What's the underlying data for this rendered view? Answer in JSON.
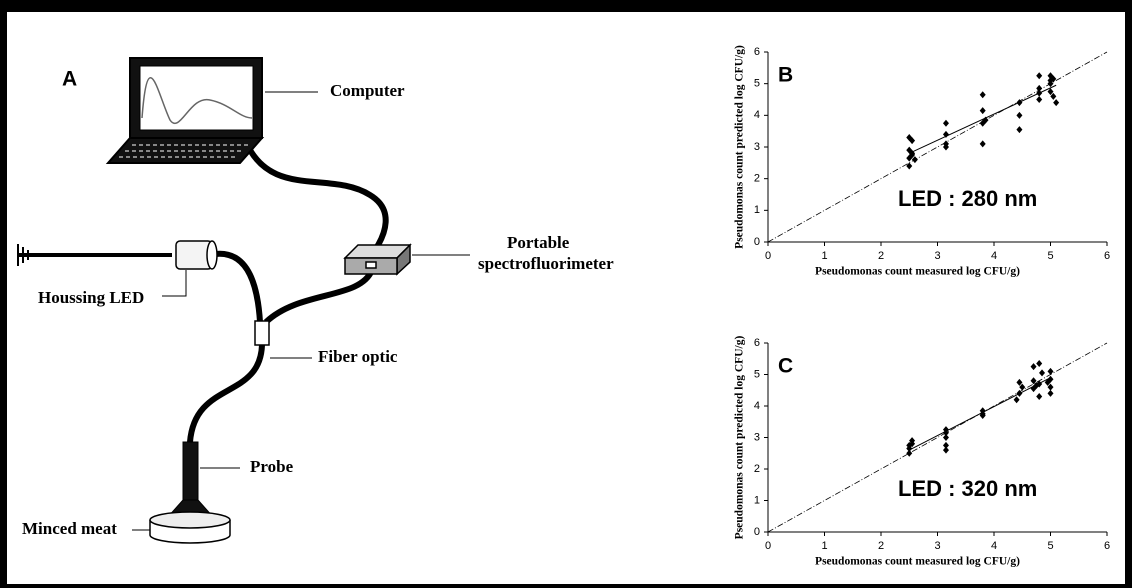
{
  "diagram": {
    "panel_label": "A",
    "labels": [
      "Computer",
      "Portable",
      "spectrofluorimeter",
      "Houssing LED",
      "Fiber optic",
      "Probe",
      "Minced meat"
    ]
  },
  "chart_data": [
    {
      "type": "scatter",
      "panel_label": "B",
      "annotation": "LED : 280 nm",
      "xlabel": "Pseudomonas count measured log CFU/g)",
      "ylabel": "Pseudomonas count predicted log CFU/g)",
      "x": [
        2.5,
        2.55,
        2.5,
        2.55,
        2.5,
        2.6,
        2.5,
        2.55,
        3.15,
        3.15,
        3.15,
        3.15,
        3.8,
        3.8,
        3.85,
        3.8,
        3.8,
        4.45,
        4.45,
        4.45,
        4.8,
        4.8,
        4.8,
        4.8,
        5.0,
        5.05,
        5.0,
        5.0,
        5.05,
        5.1,
        5.0
      ],
      "values": [
        3.3,
        3.2,
        2.9,
        2.75,
        2.65,
        2.6,
        2.4,
        2.8,
        3.75,
        3.4,
        3.1,
        3.0,
        4.65,
        4.15,
        3.85,
        3.75,
        3.1,
        4.4,
        4.0,
        3.55,
        5.25,
        4.85,
        4.7,
        4.5,
        5.25,
        5.15,
        5.1,
        5.0,
        4.6,
        4.4,
        4.75
      ],
      "fit": {
        "x": [
          2.5,
          5.1
        ],
        "values": [
          2.8,
          4.95
        ]
      },
      "color": "#000000",
      "xlim": [
        0,
        6
      ],
      "ylim": [
        0,
        6
      ],
      "xticks": [
        0,
        1,
        2,
        3,
        4,
        5,
        6
      ],
      "yticks": [
        0,
        1,
        2,
        3,
        4,
        5,
        6
      ]
    },
    {
      "type": "scatter",
      "panel_label": "C",
      "annotation": "LED : 320 nm",
      "xlabel": "Pseudomonas count measured log CFU/g)",
      "ylabel": "Pseudomonas count predicted log CFU/g)",
      "x": [
        2.5,
        2.55,
        2.5,
        2.5,
        2.55,
        3.15,
        3.15,
        3.15,
        3.15,
        3.15,
        3.8,
        3.8,
        3.8,
        4.45,
        4.5,
        4.45,
        4.4,
        4.7,
        4.8,
        4.7,
        4.75,
        4.7,
        4.8,
        4.85,
        4.8,
        5.0,
        5.0,
        5.0,
        5.0,
        4.95
      ],
      "values": [
        2.75,
        2.9,
        2.65,
        2.5,
        2.8,
        3.25,
        3.15,
        3.0,
        2.75,
        2.6,
        3.85,
        3.75,
        3.7,
        4.75,
        4.6,
        4.4,
        4.2,
        5.25,
        5.35,
        4.8,
        4.65,
        4.55,
        4.3,
        5.05,
        4.7,
        5.1,
        4.85,
        4.6,
        4.4,
        4.75
      ],
      "fit": {
        "x": [
          2.5,
          5.0
        ],
        "values": [
          2.6,
          4.9
        ]
      },
      "color": "#000000",
      "xlim": [
        0,
        6
      ],
      "ylim": [
        0,
        6
      ],
      "xticks": [
        0,
        1,
        2,
        3,
        4,
        5,
        6
      ],
      "yticks": [
        0,
        1,
        2,
        3,
        4,
        5,
        6
      ]
    }
  ]
}
